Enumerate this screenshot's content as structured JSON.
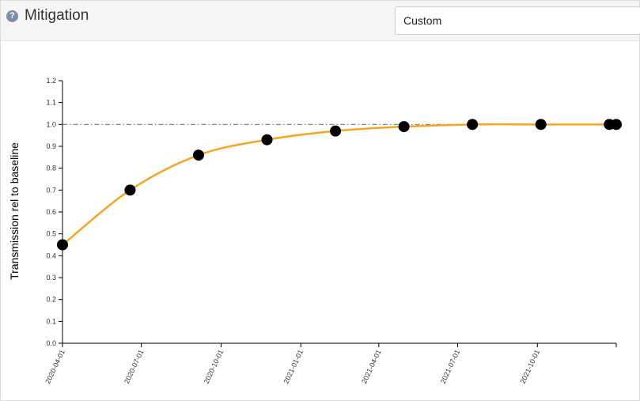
{
  "header": {
    "help_icon": "?",
    "title": "Mitigation",
    "preset_select": {
      "selected": "Custom"
    }
  },
  "chart_data": {
    "type": "line",
    "ylabel": "Transmission rel to baseline",
    "xlabel": "",
    "x_range": [
      "2020-04-01",
      "2021-12-31"
    ],
    "ylim": [
      0,
      1.2
    ],
    "y_ticks": [
      "0.0",
      "0.1",
      "0.2",
      "0.3",
      "0.4",
      "0.5",
      "0.6",
      "0.7",
      "0.8",
      "0.9",
      "1.0",
      "1.1",
      "1.2"
    ],
    "x_ticks": [
      "2020-04-01",
      "2020-07-01",
      "2020-10-01",
      "2021-01-01",
      "2021-04-01",
      "2021-07-01",
      "2021-10-01"
    ],
    "baseline": 1.0,
    "points": [
      {
        "x": "2020-04-01",
        "y": 0.45
      },
      {
        "x": "2020-06-18",
        "y": 0.7
      },
      {
        "x": "2020-09-05",
        "y": 0.86
      },
      {
        "x": "2020-11-23",
        "y": 0.93
      },
      {
        "x": "2021-02-10",
        "y": 0.97
      },
      {
        "x": "2021-04-30",
        "y": 0.99
      },
      {
        "x": "2021-07-18",
        "y": 1.0
      },
      {
        "x": "2021-10-05",
        "y": 1.0
      },
      {
        "x": "2021-12-23",
        "y": 1.0
      },
      {
        "x": "2022-03-12",
        "y": 1.0
      }
    ],
    "colors": {
      "curve": "#f5a623",
      "point": "#000000",
      "baseline": "#7a7a7a",
      "axis": "#000000"
    }
  }
}
